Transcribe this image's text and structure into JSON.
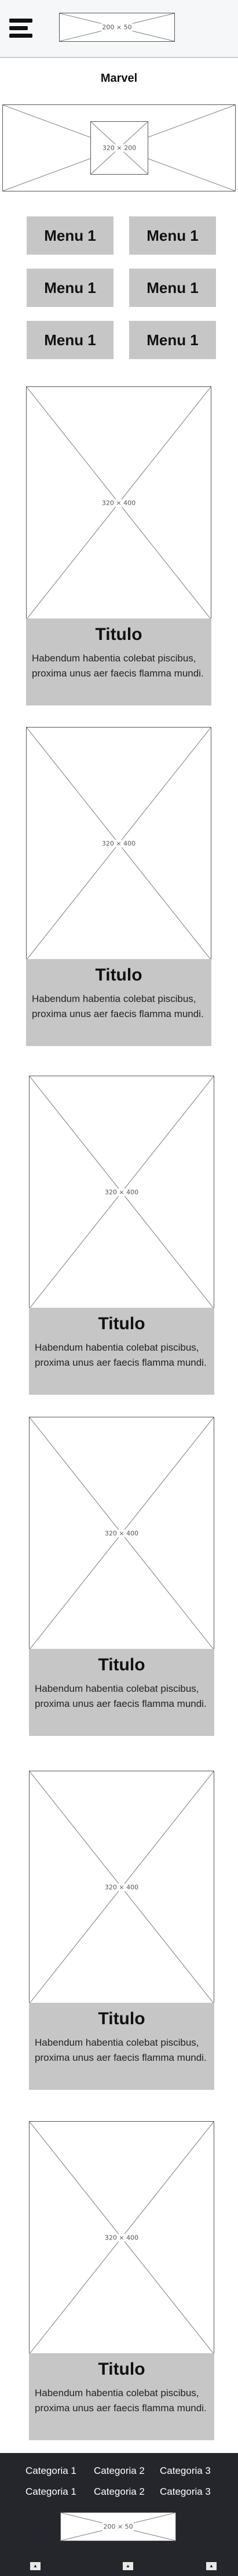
{
  "header": {
    "logo_label": "200 × 50"
  },
  "page": {
    "title": "Marvel"
  },
  "hero": {
    "image_label": "320 × 200"
  },
  "menu": {
    "items": [
      "Menu 1",
      "Menu 1",
      "Menu 1",
      "Menu 1",
      "Menu 1",
      "Menu 1"
    ]
  },
  "cards": [
    {
      "image_label": "320 × 400",
      "title": "Titulo",
      "text": "Habendum habentia colebat piscibus, proxima unus aer faecis flamma mundi."
    },
    {
      "image_label": "320 × 400",
      "title": "Titulo",
      "text": "Habendum habentia colebat piscibus, proxima unus aer faecis flamma mundi."
    },
    {
      "image_label": "320 × 400",
      "title": "Titulo",
      "text": "Habendum habentia colebat piscibus, proxima unus aer faecis flamma mundi."
    },
    {
      "image_label": "320 × 400",
      "title": "Titulo",
      "text": "Habendum habentia colebat piscibus, proxima unus aer faecis flamma mundi."
    },
    {
      "image_label": "320 × 400",
      "title": "Titulo",
      "text": "Habendum habentia colebat piscibus, proxima unus aer faecis flamma mundi."
    },
    {
      "image_label": "320 × 400",
      "title": "Titulo",
      "text": "Habendum habentia colebat piscibus, proxima unus aer faecis flamma mundi."
    }
  ],
  "footer": {
    "categories_row1": [
      "Categoria 1",
      "Categoria 2",
      "Categoria 3"
    ],
    "categories_row2": [
      "Categoria 1",
      "Categoria 2",
      "Categoria 3"
    ],
    "logo_label": "200 × 50",
    "arrow_glyph": "▲"
  }
}
